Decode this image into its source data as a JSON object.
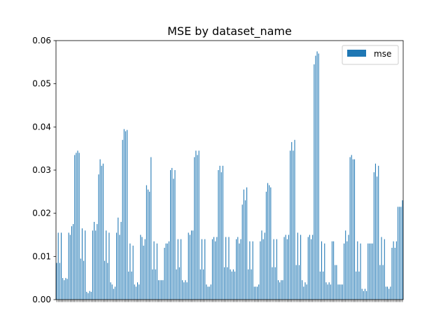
{
  "chart_data": {
    "type": "bar",
    "title": "MSE by dataset_name",
    "xlabel": "",
    "ylabel": "",
    "ylim": [
      0,
      0.06
    ],
    "yticks": [
      0.0,
      0.01,
      0.02,
      0.03,
      0.04,
      0.05,
      0.06
    ],
    "ytick_labels": [
      "0.00",
      "0.01",
      "0.02",
      "0.03",
      "0.04",
      "0.05",
      "0.06"
    ],
    "legend": {
      "placement": "top-right",
      "entries": [
        "mse"
      ]
    },
    "grid": false,
    "series": [
      {
        "name": "mse",
        "color": "#1f77b4",
        "values": [
          0.0085,
          0.0155,
          0.0085,
          0.0155,
          0.005,
          0.0045,
          0.005,
          0.0048,
          0.0155,
          0.015,
          0.017,
          0.0175,
          0.0335,
          0.034,
          0.0345,
          0.034,
          0.0095,
          0.0165,
          0.009,
          0.016,
          0.0018,
          0.0015,
          0.002,
          0.0018,
          0.016,
          0.018,
          0.016,
          0.0175,
          0.029,
          0.0325,
          0.031,
          0.0315,
          0.009,
          0.016,
          0.0085,
          0.0155,
          0.004,
          0.0035,
          0.0025,
          0.003,
          0.0155,
          0.019,
          0.015,
          0.018,
          0.037,
          0.0395,
          0.039,
          0.0393,
          0.0065,
          0.013,
          0.0065,
          0.0125,
          0.0035,
          0.003,
          0.004,
          0.0035,
          0.015,
          0.0145,
          0.0125,
          0.014,
          0.0265,
          0.0255,
          0.025,
          0.033,
          0.007,
          0.0135,
          0.007,
          0.013,
          0.0045,
          0.0045,
          0.0045,
          0.0045,
          0.012,
          0.013,
          0.013,
          0.0135,
          0.03,
          0.0305,
          0.028,
          0.03,
          0.007,
          0.014,
          0.0075,
          0.014,
          0.0045,
          0.004,
          0.0045,
          0.004,
          0.0155,
          0.015,
          0.016,
          0.016,
          0.033,
          0.0345,
          0.0335,
          0.0345,
          0.007,
          0.014,
          0.007,
          0.014,
          0.0035,
          0.003,
          0.003,
          0.0035,
          0.014,
          0.0145,
          0.0135,
          0.0145,
          0.03,
          0.031,
          0.0295,
          0.031,
          0.0075,
          0.0145,
          0.0075,
          0.0145,
          0.007,
          0.0065,
          0.007,
          0.0065,
          0.014,
          0.0145,
          0.013,
          0.014,
          0.022,
          0.0255,
          0.023,
          0.026,
          0.007,
          0.0135,
          0.007,
          0.0135,
          0.003,
          0.003,
          0.003,
          0.0035,
          0.0135,
          0.016,
          0.014,
          0.0155,
          0.025,
          0.027,
          0.0265,
          0.026,
          0.0075,
          0.014,
          0.0075,
          0.014,
          0.0045,
          0.004,
          0.0045,
          0.0045,
          0.0145,
          0.015,
          0.014,
          0.015,
          0.0345,
          0.0365,
          0.0345,
          0.037,
          0.008,
          0.0155,
          0.008,
          0.015,
          0.0045,
          0.003,
          0.004,
          0.0035,
          0.0145,
          0.015,
          0.014,
          0.015,
          0.0545,
          0.0565,
          0.0575,
          0.057,
          0.0065,
          0.0135,
          0.0065,
          0.013,
          0.004,
          0.0035,
          0.004,
          0.0035,
          0.0135,
          0.0135,
          0.008,
          0.008,
          0.0035,
          0.0035,
          0.0035,
          0.0035,
          0.013,
          0.016,
          0.0135,
          0.015,
          0.033,
          0.0335,
          0.0325,
          0.0325,
          0.0065,
          0.0135,
          0.0065,
          0.013,
          0.0025,
          0.002,
          0.0025,
          0.002,
          0.013,
          0.013,
          0.013,
          0.013,
          0.0295,
          0.0315,
          0.0285,
          0.031,
          0.008,
          0.0145,
          0.008,
          0.014,
          0.003,
          0.003,
          0.0025,
          0.003,
          0.012,
          0.0135,
          0.012,
          0.0135,
          0.0215,
          0.0215,
          0.0215,
          0.023
        ]
      }
    ]
  }
}
